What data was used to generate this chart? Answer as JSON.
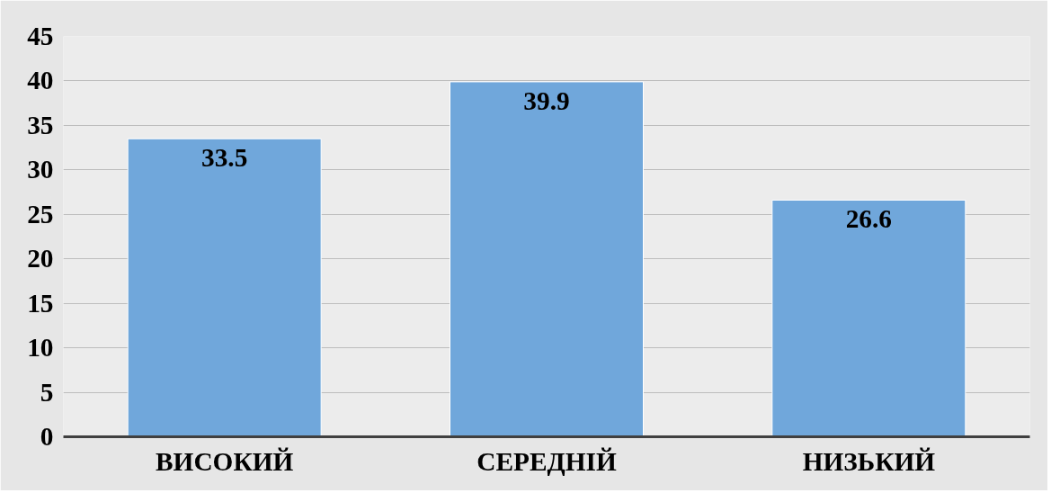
{
  "chart_data": {
    "type": "bar",
    "categories": [
      "ВИСОКИЙ",
      "СЕРЕДНІЙ",
      "НИЗЬКИЙ"
    ],
    "values": [
      33.5,
      39.9,
      26.6
    ],
    "color": "#70a7db",
    "ylim": [
      0,
      45
    ],
    "yticks": [
      0,
      5,
      10,
      15,
      20,
      25,
      30,
      35,
      40,
      45
    ],
    "grid": "y",
    "data_labels": true
  }
}
